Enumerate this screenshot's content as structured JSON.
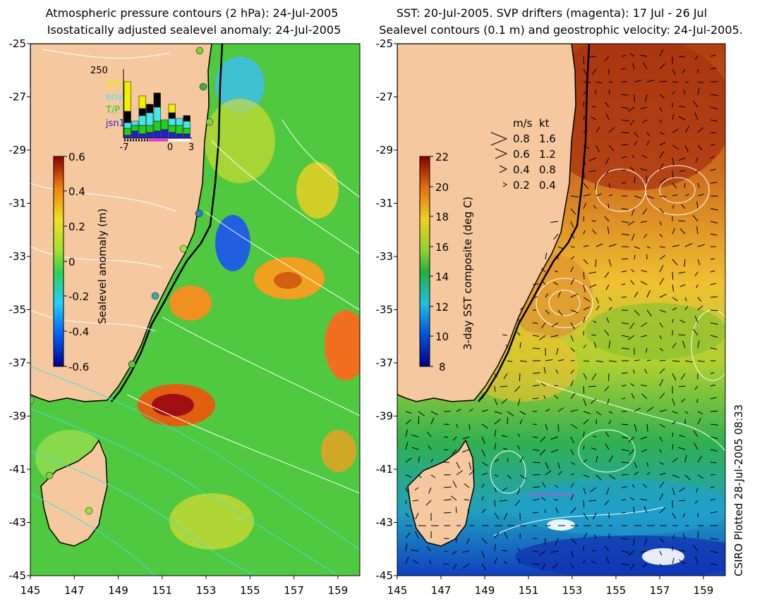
{
  "left_panel": {
    "title_line1": "Atmospheric pressure contours (2 hPa): 24-Jul-2005",
    "title_line2": "Isostatically adjusted sealevel anomaly: 24-Jul-2005",
    "colorbar": {
      "label": "Sealevel anomaly (m)",
      "ticks": [
        "0.6",
        "0.4",
        "0.2",
        "0",
        "-0.2",
        "-0.4",
        "-0.6"
      ],
      "range": [
        -0.6,
        0.6
      ]
    },
    "histogram": {
      "count_label": "250",
      "legend": [
        {
          "name": "GFO",
          "color": "#f0f000"
        },
        {
          "name": "envi",
          "color": "#40e8e8"
        },
        {
          "name": "T/P",
          "color": "#20d020"
        },
        {
          "name": "jsn1",
          "color": "#2020d0"
        }
      ],
      "x_ticks": [
        "-7",
        "0",
        "3"
      ]
    }
  },
  "right_panel": {
    "title_line1": "SST: 20-Jul-2005. SVP drifters (magenta): 17 Jul - 26 Jul",
    "title_line2": "Sealevel contours (0.1 m) and geostrophic velocity: 24-Jul-2005.",
    "colorbar": {
      "label": "3-day SST composite (deg C)",
      "ticks": [
        "22",
        "20",
        "18",
        "16",
        "14",
        "12",
        "10",
        "8"
      ],
      "range": [
        8,
        22
      ]
    },
    "velocity_legend": {
      "header_ms": "m/s",
      "header_kt": "kt",
      "rows": [
        {
          "ms": "0.8",
          "kt": "1.6"
        },
        {
          "ms": "0.6",
          "kt": "1.2"
        },
        {
          "ms": "0.4",
          "kt": "0.8"
        },
        {
          "ms": "0.2",
          "kt": "0.4"
        }
      ]
    }
  },
  "axes": {
    "lat_ticks": [
      "-25",
      "-27",
      "-29",
      "-31",
      "-33",
      "-35",
      "-37",
      "-39",
      "-41",
      "-43",
      "-45"
    ],
    "lon_ticks": [
      "145",
      "147",
      "149",
      "151",
      "153",
      "155",
      "157",
      "159"
    ]
  },
  "credit": "CSIRO Plotted 28-Jul-2005 08:33",
  "colors": {
    "land": "#f5c8a0",
    "coast": "#000000"
  }
}
